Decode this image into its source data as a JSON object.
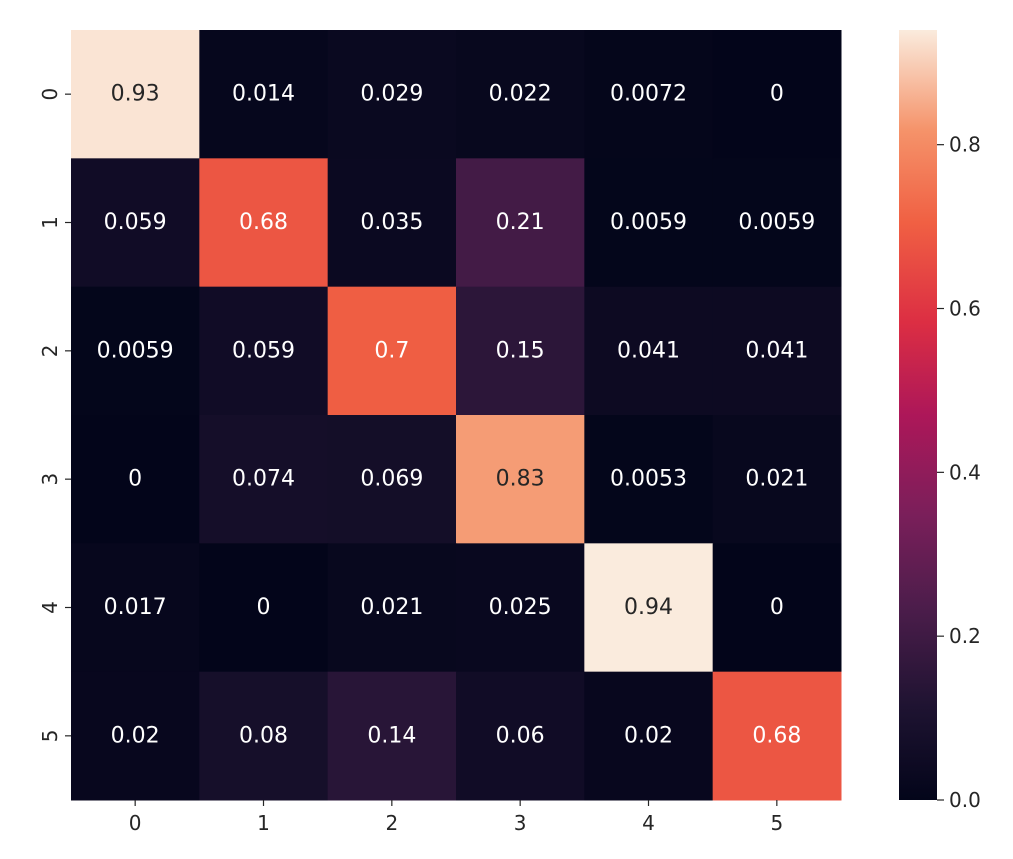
{
  "chart_data": {
    "type": "heatmap",
    "title": "",
    "xlabel": "",
    "ylabel": "",
    "x_categories": [
      "0",
      "1",
      "2",
      "3",
      "4",
      "5"
    ],
    "y_categories": [
      "0",
      "1",
      "2",
      "3",
      "4",
      "5"
    ],
    "values": [
      [
        0.93,
        0.014,
        0.029,
        0.022,
        0.0072,
        0
      ],
      [
        0.059,
        0.68,
        0.035,
        0.21,
        0.0059,
        0.0059
      ],
      [
        0.0059,
        0.059,
        0.7,
        0.15,
        0.041,
        0.041
      ],
      [
        0,
        0.074,
        0.069,
        0.83,
        0.0053,
        0.021
      ],
      [
        0.017,
        0,
        0.021,
        0.025,
        0.94,
        0
      ],
      [
        0.02,
        0.08,
        0.14,
        0.06,
        0.02,
        0.68
      ]
    ],
    "colormap": "rocket",
    "vmin": 0.0,
    "vmax": 0.94,
    "colorbar": {
      "ticks": [
        0.0,
        0.2,
        0.4,
        0.6,
        0.8
      ],
      "tick_labels": [
        "0.0",
        "0.2",
        "0.4",
        "0.6",
        "0.8"
      ]
    }
  }
}
